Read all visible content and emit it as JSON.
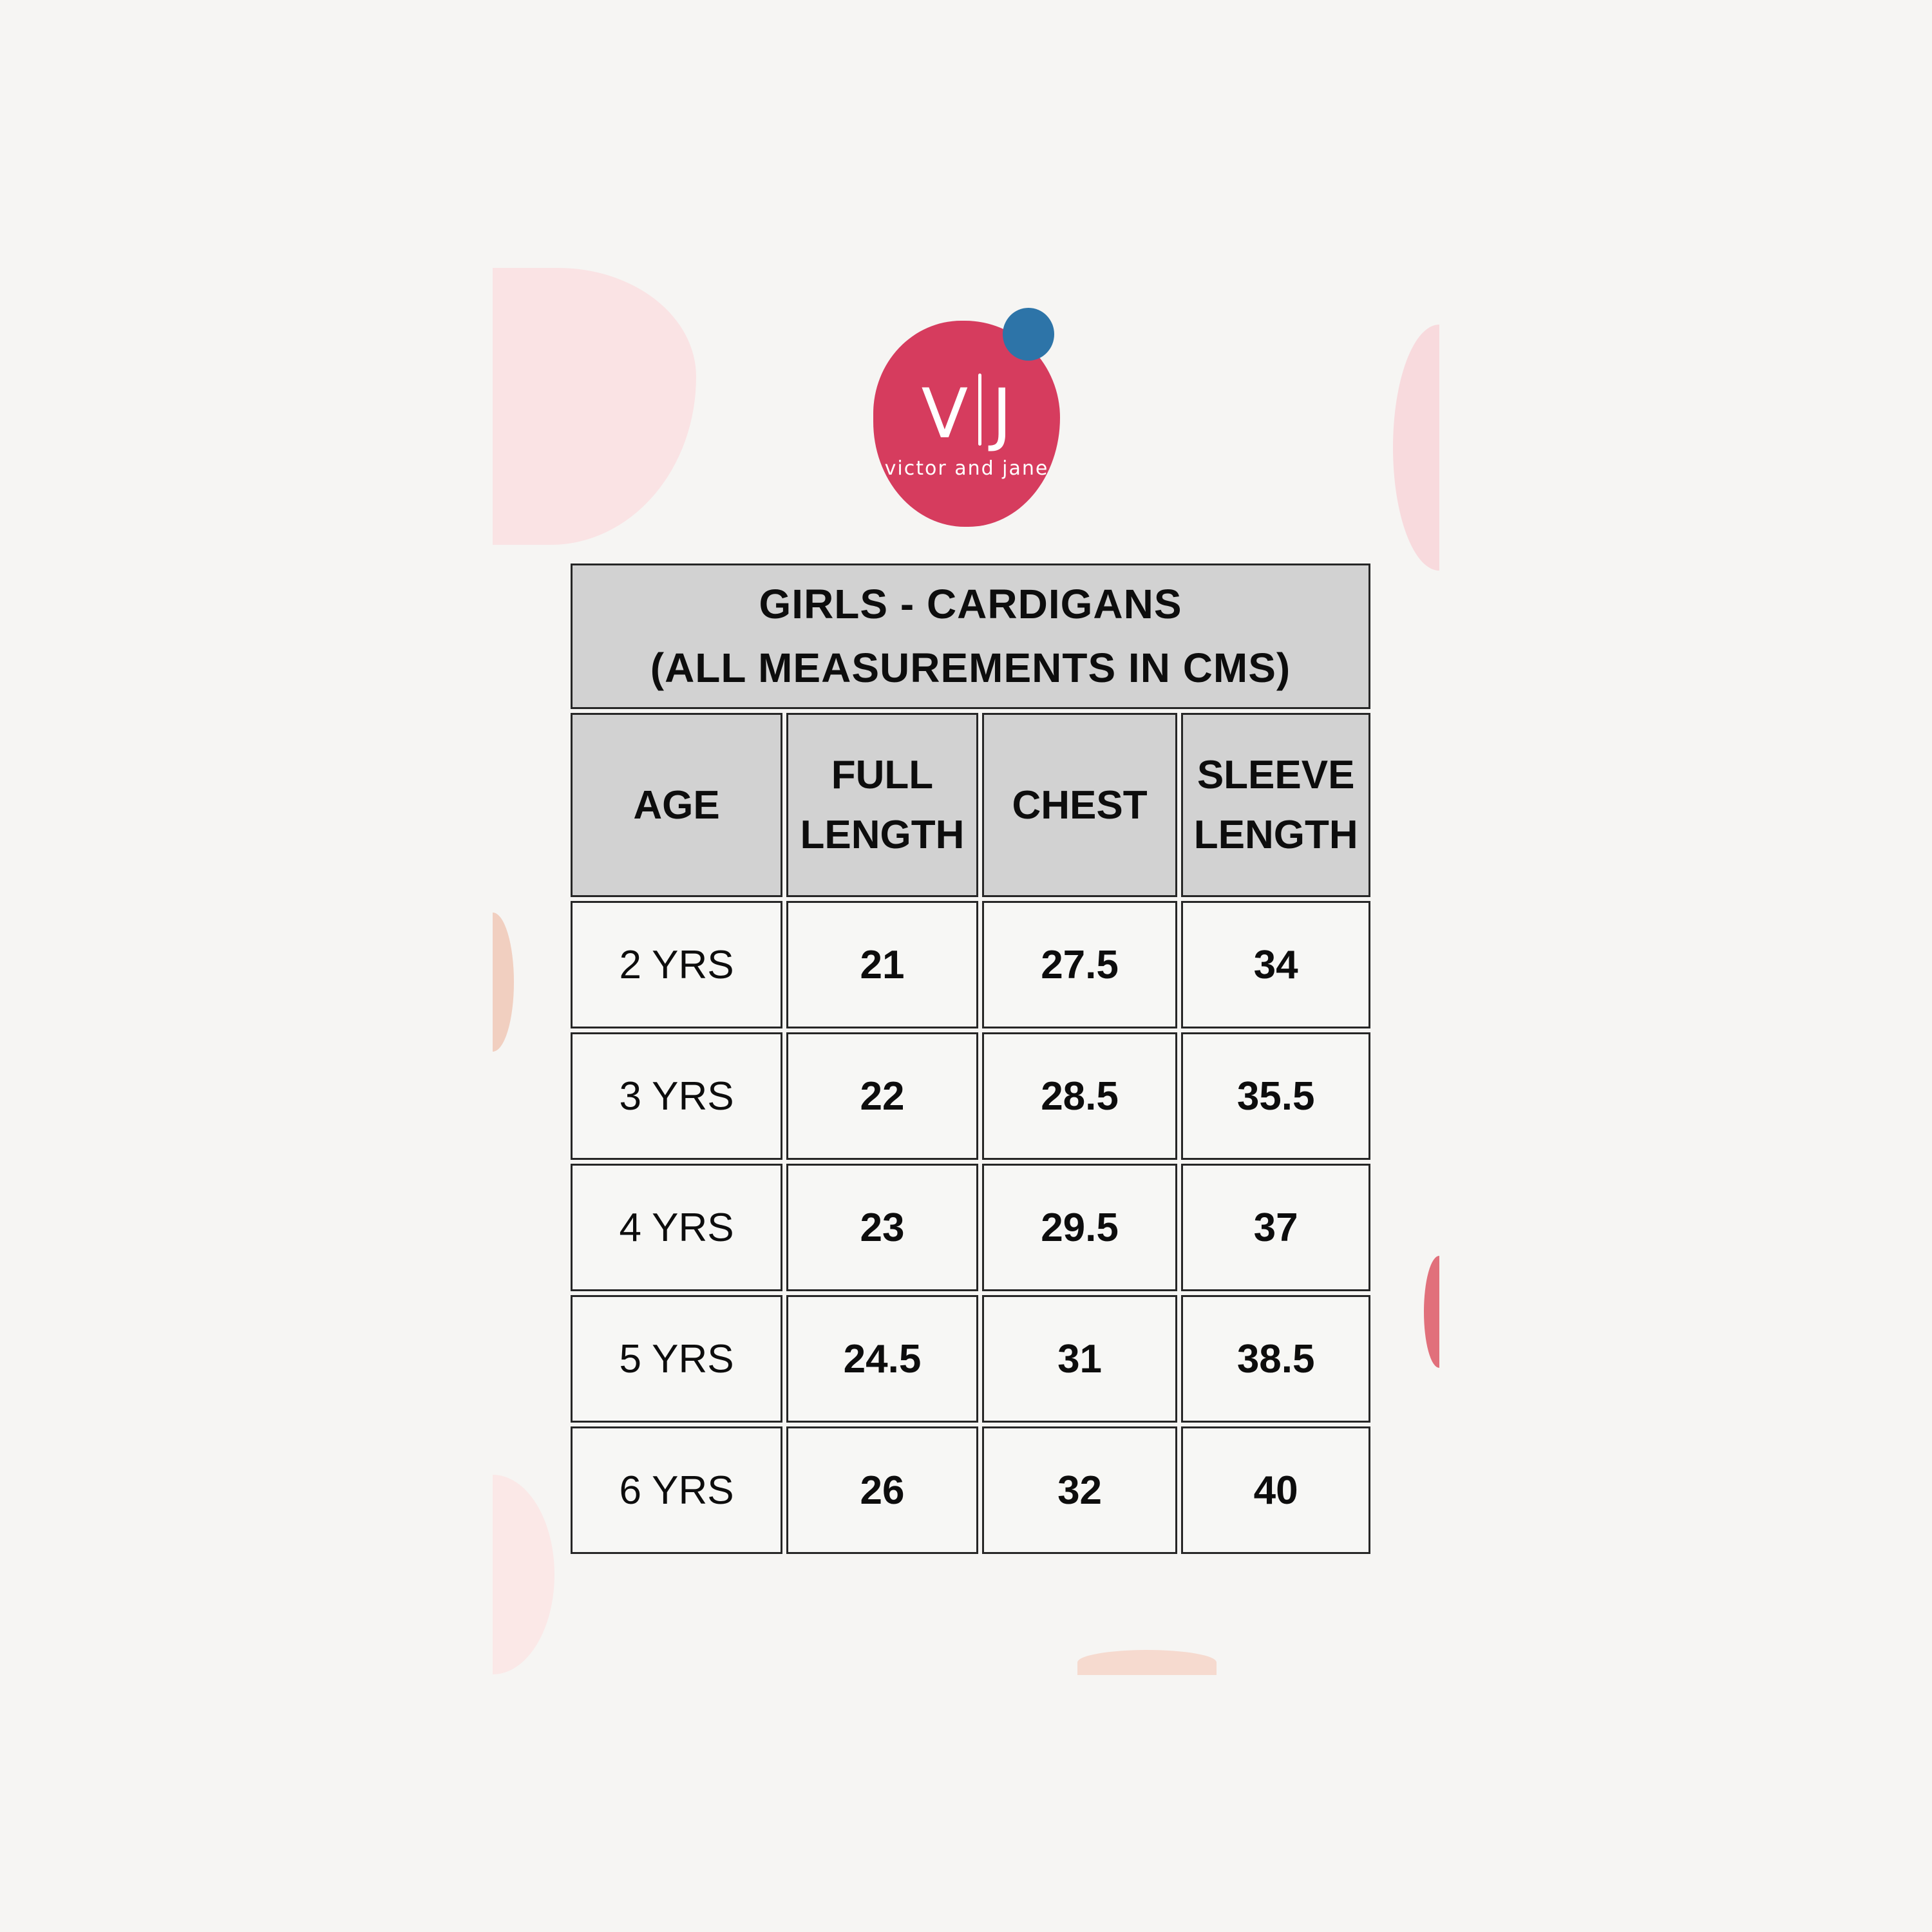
{
  "page": {
    "background_color": "#f6f5f3"
  },
  "logo": {
    "initial_left": "V",
    "initial_right": "J",
    "tagline": "victor and jane",
    "circle_color": "#d63c5e",
    "accent_dot_color": "#2d74a8",
    "text_color": "#ffffff"
  },
  "decor_colors": {
    "blob_top_left": "#fae3e4",
    "crescent_right_top": "#f8dadd",
    "crescent_left_mid": "#f1cfc0",
    "sliver_right": "#e1707b",
    "half_left_bottom": "#fbe8e7",
    "dome_bottom": "#f6dacf"
  },
  "table": {
    "title_line1": "GIRLS - CARDIGANS",
    "title_line2": "(ALL MEASUREMENTS IN CMS)",
    "header_bg": "#d2d2d2",
    "cell_bg": "#f7f7f5",
    "border_color": "#262626",
    "columns": [
      "AGE",
      "FULL LENGTH",
      "CHEST",
      "SLEEVE LENGTH"
    ],
    "rows": [
      {
        "age": "2 YRS",
        "full_length": "21",
        "chest": "27.5",
        "sleeve_length": "34"
      },
      {
        "age": "3 YRS",
        "full_length": "22",
        "chest": "28.5",
        "sleeve_length": "35.5"
      },
      {
        "age": "4 YRS",
        "full_length": "23",
        "chest": "29.5",
        "sleeve_length": "37"
      },
      {
        "age": "5 YRS",
        "full_length": "24.5",
        "chest": "31",
        "sleeve_length": "38.5"
      },
      {
        "age": "6 YRS",
        "full_length": "26",
        "chest": "32",
        "sleeve_length": "40"
      }
    ]
  }
}
